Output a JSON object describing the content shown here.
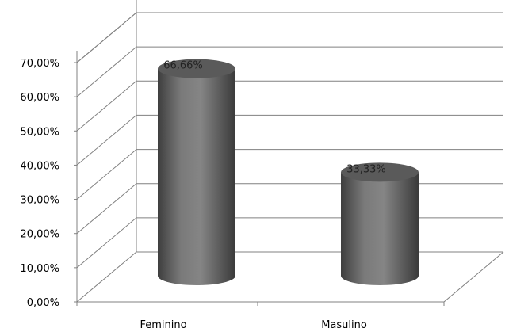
{
  "chart_data": {
    "type": "bar",
    "style": "3d-cylinder",
    "categories": [
      "Feminino",
      "Masulino"
    ],
    "values": [
      66.66,
      33.33
    ],
    "data_labels": [
      "66,66%",
      "33,33%"
    ],
    "y_ticks": [
      "0,00%",
      "10,00%",
      "20,00%",
      "30,00%",
      "40,00%",
      "50,00%",
      "60,00%",
      "70,00%"
    ],
    "ylim": [
      0,
      70
    ],
    "grid": true,
    "legend": "none",
    "title": "",
    "xlabel": "",
    "ylabel": "",
    "colors": {
      "bar": "#6b6b6b",
      "bar_top": "#5a5a5a",
      "grid": "#808080"
    }
  }
}
